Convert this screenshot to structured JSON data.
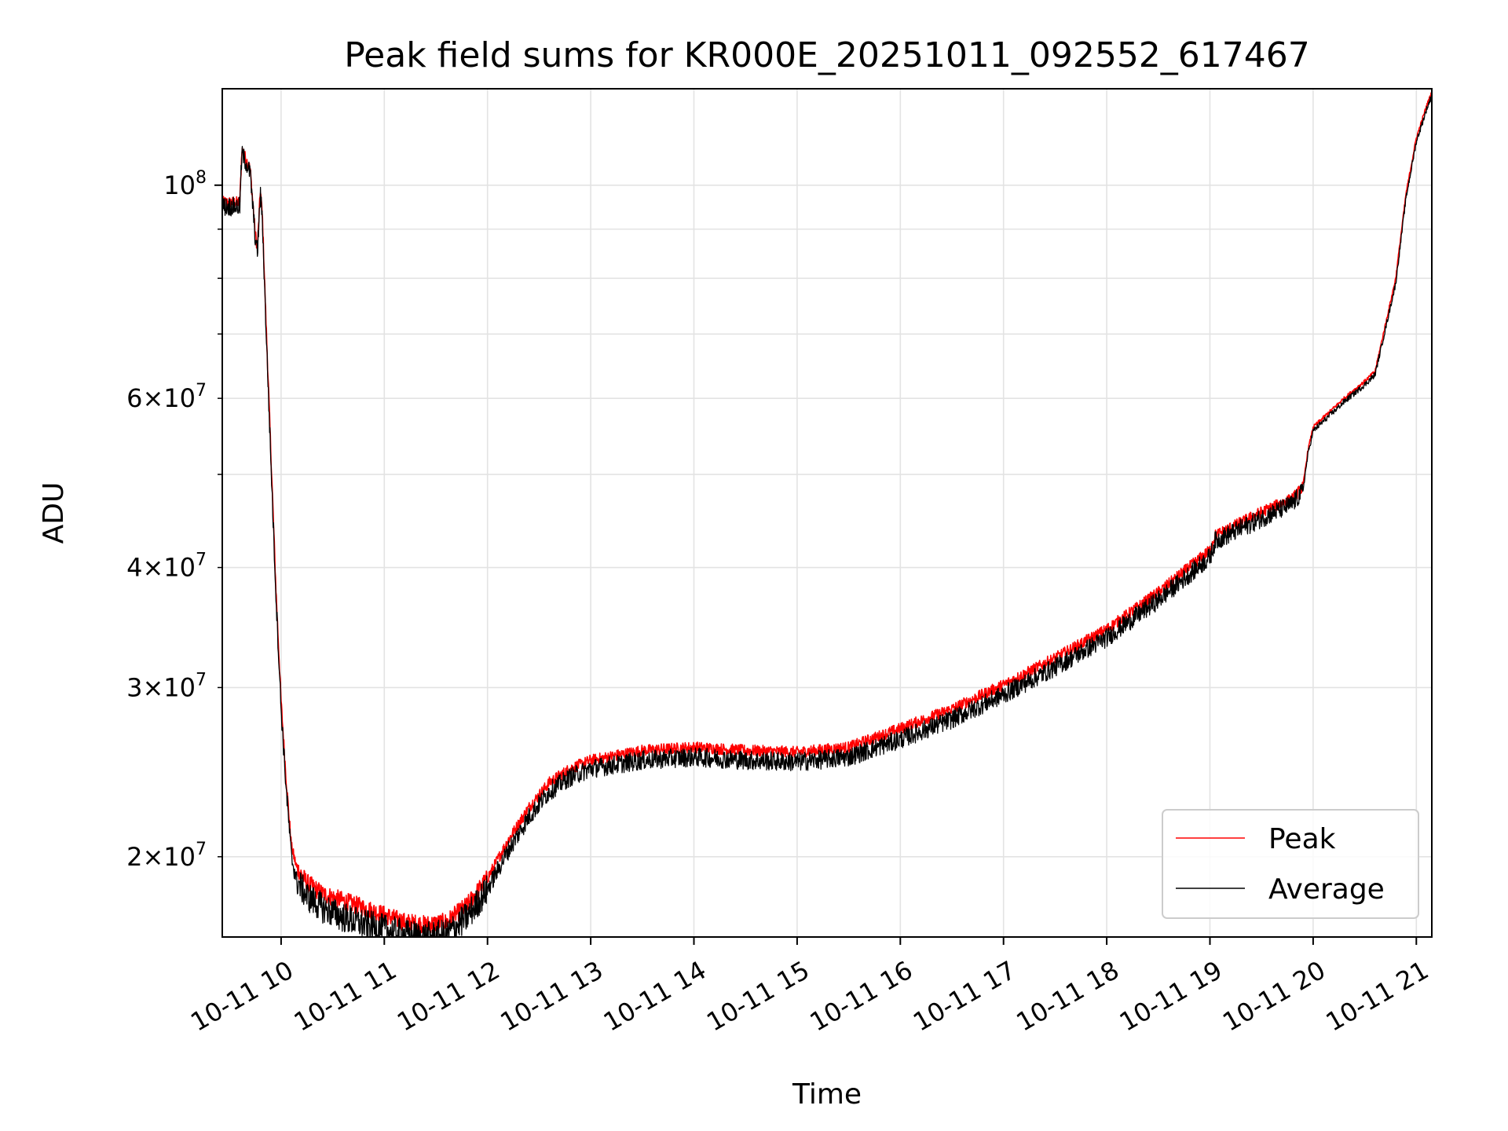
{
  "chart_data": {
    "type": "line",
    "title": "Peak field sums for KR000E_20251011_092552_617467",
    "xlabel": "Time",
    "ylabel": "ADU",
    "yscale": "log",
    "ylim": [
      16500000,
      126000000
    ],
    "xlim": [
      9.43,
      21.15
    ],
    "grid": true,
    "legend_position": "lower-right",
    "x_ticks": [
      {
        "value": 10,
        "label": "10-11 10"
      },
      {
        "value": 11,
        "label": "10-11 11"
      },
      {
        "value": 12,
        "label": "10-11 12"
      },
      {
        "value": 13,
        "label": "10-11 13"
      },
      {
        "value": 14,
        "label": "10-11 14"
      },
      {
        "value": 15,
        "label": "10-11 15"
      },
      {
        "value": 16,
        "label": "10-11 16"
      },
      {
        "value": 17,
        "label": "10-11 17"
      },
      {
        "value": 18,
        "label": "10-11 18"
      },
      {
        "value": 19,
        "label": "10-11 19"
      },
      {
        "value": 20,
        "label": "10-11 20"
      },
      {
        "value": 21,
        "label": "10-11 21"
      }
    ],
    "y_ticks_major": [
      {
        "value": 100000000,
        "base": "10",
        "exp": "8"
      }
    ],
    "y_ticks_minor": [
      {
        "value": 20000000,
        "mant": "2",
        "base": "10",
        "exp": "7"
      },
      {
        "value": 30000000,
        "mant": "3",
        "base": "10",
        "exp": "7"
      },
      {
        "value": 40000000,
        "mant": "4",
        "base": "10",
        "exp": "7"
      },
      {
        "value": 60000000,
        "mant": "6",
        "base": "10",
        "exp": "7"
      }
    ],
    "y_ticks_minor_unlabeled": [
      50000000,
      70000000,
      80000000,
      90000000
    ],
    "series": [
      {
        "name": "Peak",
        "color": "#ff0000",
        "noise": 0.012,
        "x": [
          9.43,
          9.6,
          9.62,
          9.7,
          9.75,
          9.77,
          9.8,
          9.82,
          9.85,
          9.9,
          9.95,
          10.0,
          10.05,
          10.1,
          10.15,
          10.25,
          10.4,
          10.6,
          10.8,
          11.0,
          11.2,
          11.4,
          11.6,
          11.8,
          12.0,
          12.2,
          12.4,
          12.6,
          12.8,
          13.0,
          13.5,
          14.0,
          14.5,
          15.0,
          15.5,
          16.0,
          16.5,
          17.0,
          17.5,
          18.0,
          18.5,
          19.0,
          19.05,
          19.5,
          19.8,
          19.9,
          19.95,
          20.0,
          20.3,
          20.5,
          20.6,
          20.8,
          20.9,
          21.0,
          21.1,
          21.15
        ],
        "values": [
          96000000,
          96000000,
          109000000,
          104000000,
          89000000,
          86000000,
          99000000,
          92000000,
          74000000,
          53000000,
          38000000,
          29000000,
          24000000,
          20500000,
          19500000,
          18800000,
          18300000,
          18000000,
          17700000,
          17400000,
          17100000,
          17000000,
          17100000,
          17800000,
          19000000,
          20800000,
          22500000,
          23900000,
          24700000,
          25200000,
          25800000,
          26000000,
          25800000,
          25700000,
          26000000,
          27200000,
          28500000,
          30200000,
          32200000,
          34500000,
          37700000,
          41700000,
          43200000,
          45700000,
          47200000,
          48500000,
          53000000,
          56000000,
          60000000,
          62500000,
          64000000,
          80000000,
          98000000,
          112000000,
          121000000,
          125000000
        ]
      },
      {
        "name": "Average",
        "color": "#000000",
        "noise": 0.02,
        "x": [
          9.43,
          9.6,
          9.62,
          9.7,
          9.75,
          9.77,
          9.8,
          9.82,
          9.85,
          9.9,
          9.95,
          10.0,
          10.05,
          10.1,
          10.15,
          10.25,
          10.4,
          10.6,
          10.8,
          11.0,
          11.2,
          11.4,
          11.6,
          11.8,
          12.0,
          12.2,
          12.4,
          12.6,
          12.8,
          13.0,
          13.5,
          14.0,
          14.5,
          15.0,
          15.5,
          16.0,
          16.5,
          17.0,
          17.5,
          18.0,
          18.5,
          19.0,
          19.05,
          19.5,
          19.8,
          19.9,
          19.95,
          20.0,
          20.3,
          20.5,
          20.6,
          20.8,
          20.9,
          21.0,
          21.1,
          21.15
        ],
        "values": [
          95000000,
          95000000,
          108000000,
          103000000,
          88000000,
          85000000,
          98000000,
          91000000,
          73000000,
          52000000,
          37500000,
          28500000,
          23500000,
          20000000,
          18900000,
          18200000,
          17700000,
          17300000,
          17000000,
          16800000,
          16600000,
          16500000,
          16600000,
          17300000,
          18500000,
          20300000,
          22000000,
          23400000,
          24200000,
          24700000,
          25200000,
          25400000,
          25200000,
          25100000,
          25400000,
          26500000,
          27800000,
          29500000,
          31500000,
          33800000,
          37000000,
          41000000,
          42600000,
          45000000,
          46600000,
          48000000,
          52500000,
          55500000,
          59500000,
          62000000,
          63500000,
          79000000,
          97000000,
          111000000,
          120000000,
          124000000
        ]
      }
    ]
  }
}
